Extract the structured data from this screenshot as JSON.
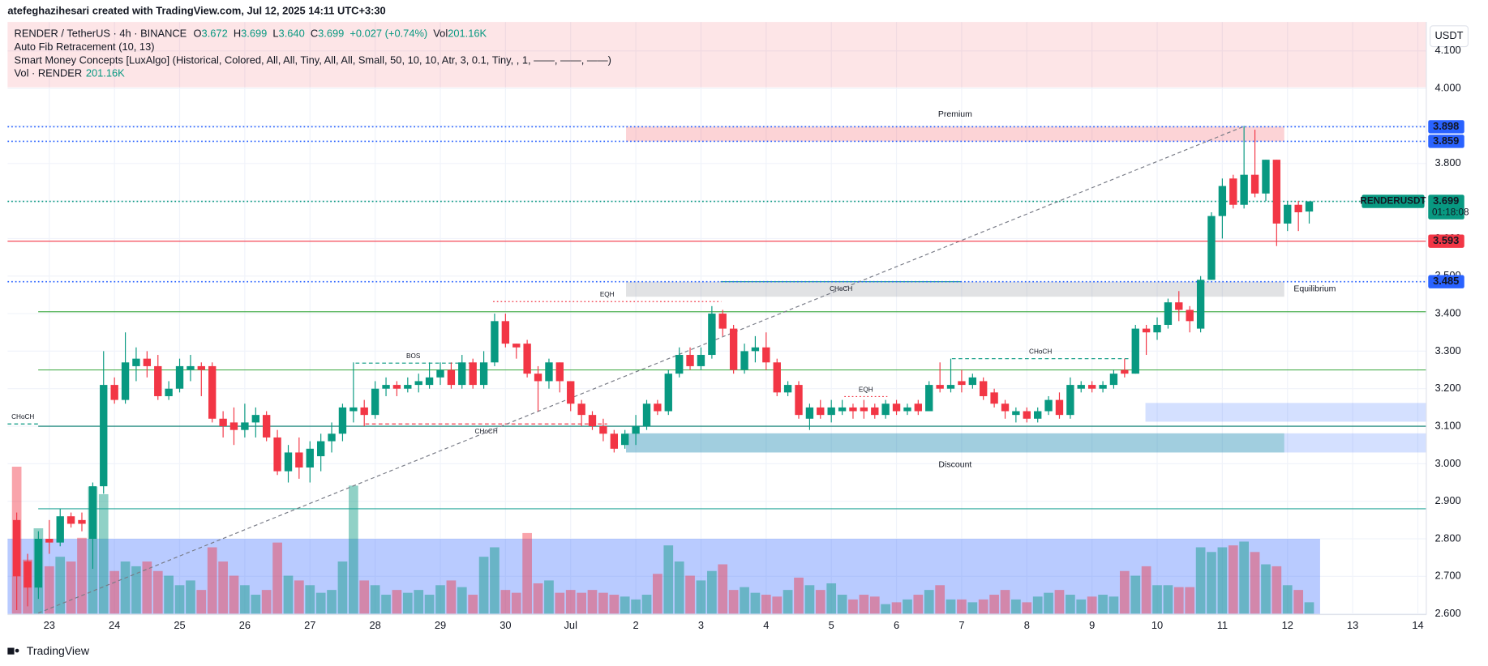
{
  "header": {
    "credit": "atefeghazihesari created with TradingView.com, Jul 12, 2025 14:11 UTC+3:30"
  },
  "legend": {
    "symbol": "RENDER / TetherUS · 4h · BINANCE",
    "ohlc": [
      {
        "key": "O",
        "value": "3.672"
      },
      {
        "key": "H",
        "value": "3.699"
      },
      {
        "key": "L",
        "value": "3.640"
      },
      {
        "key": "C",
        "value": "3.699"
      }
    ],
    "change": "+0.027 (+0.74%)",
    "vol_key": "Vol",
    "vol_value": "201.16K",
    "fib": "Auto Fib Retracement (10, 13)",
    "smc": "Smart Money Concepts [LuxAlgo] (Historical, Colored, All, All, Tiny, All, All, Small, 50, 10, 10, Atr, 3, 0.1, Tiny, , 1, ——, ——, ——)",
    "vol_name": "Vol · RENDER",
    "vol_name_value": "201.16K"
  },
  "axis_unit": "USDT",
  "footer": {
    "brand": "TradingView"
  },
  "chart_data": {
    "type": "candlestick",
    "up_color": "#089981",
    "down_color": "#f23645",
    "grid": true,
    "x": [
      22.5,
      22.667,
      22.833,
      23,
      23.167,
      23.333,
      23.5,
      23.667,
      23.833,
      24,
      24.167,
      24.333,
      24.5,
      24.667,
      24.833,
      25,
      25.167,
      25.333,
      25.5,
      25.667,
      25.833,
      26,
      26.167,
      26.333,
      26.5,
      26.667,
      26.833,
      27,
      27.167,
      27.333,
      27.5,
      27.667,
      27.833,
      28,
      28.167,
      28.333,
      28.5,
      28.667,
      28.833,
      29,
      29.167,
      29.333,
      29.5,
      29.667,
      29.833,
      30,
      30.167,
      30.333,
      30.5,
      30.667,
      30.833,
      31,
      31.167,
      31.333,
      31.5,
      31.667,
      31.833,
      32,
      32.167,
      32.333,
      32.5,
      32.667,
      32.833,
      33,
      33.167,
      33.333,
      33.5,
      33.667,
      33.833,
      34,
      34.167,
      34.333,
      34.5,
      34.667,
      34.833,
      35,
      35.167,
      35.333,
      35.5,
      35.667,
      35.833,
      36,
      36.167,
      36.333,
      36.5,
      36.667,
      36.833,
      37,
      37.167,
      37.333,
      37.5,
      37.667,
      37.833,
      38,
      38.167,
      38.333,
      38.5,
      38.667,
      38.833,
      39,
      39.167,
      39.333,
      39.5,
      39.667,
      39.833,
      40,
      40.167,
      40.333,
      40.5,
      40.667,
      40.833,
      41,
      41.167,
      41.333,
      41.5,
      41.667,
      41.833,
      42,
      42.167,
      42.333
    ],
    "open": [
      2.85,
      2.74,
      2.67,
      2.8,
      2.79,
      2.86,
      2.85,
      2.8,
      2.94,
      3.21,
      3.17,
      3.26,
      3.28,
      3.26,
      3.18,
      3.2,
      3.25,
      3.26,
      3.26,
      3.12,
      3.11,
      3.09,
      3.11,
      3.13,
      3.07,
      2.98,
      3.03,
      2.99,
      3.02,
      3.06,
      3.08,
      3.14,
      3.15,
      3.13,
      3.2,
      3.21,
      3.2,
      3.21,
      3.21,
      3.23,
      3.25,
      3.21,
      3.27,
      3.21,
      3.27,
      3.38,
      3.32,
      3.32,
      3.24,
      3.22,
      3.27,
      3.22,
      3.16,
      3.13,
      3.1,
      3.08,
      3.05,
      3.08,
      3.1,
      3.16,
      3.14,
      3.24,
      3.29,
      3.26,
      3.29,
      3.4,
      3.36,
      3.25,
      3.3,
      3.31,
      3.27,
      3.19,
      3.21,
      3.12,
      3.15,
      3.13,
      3.14,
      3.15,
      3.15,
      3.15,
      3.13,
      3.16,
      3.14,
      3.16,
      3.14,
      3.21,
      3.2,
      3.22,
      3.21,
      3.22,
      3.19,
      3.16,
      3.13,
      3.14,
      3.12,
      3.14,
      3.17,
      3.13,
      3.2,
      3.21,
      3.2,
      3.21,
      3.25,
      3.24,
      3.36,
      3.35,
      3.37,
      3.43,
      3.41,
      3.36,
      3.49,
      3.66,
      3.76,
      3.69,
      3.77,
      3.72,
      3.81,
      3.64,
      3.69,
      3.672
    ],
    "high": [
      2.87,
      2.76,
      2.82,
      2.85,
      2.88,
      2.87,
      2.87,
      2.95,
      3.3,
      3.23,
      3.35,
      3.31,
      3.3,
      3.29,
      3.22,
      3.28,
      3.29,
      3.27,
      3.27,
      3.14,
      3.15,
      3.16,
      3.15,
      3.14,
      3.09,
      3.05,
      3.07,
      3.06,
      3.08,
      3.11,
      3.16,
      3.27,
      3.17,
      3.22,
      3.23,
      3.22,
      3.23,
      3.24,
      3.27,
      3.27,
      3.27,
      3.29,
      3.28,
      3.3,
      3.4,
      3.4,
      3.32,
      3.33,
      3.26,
      3.28,
      3.27,
      3.22,
      3.17,
      3.14,
      3.12,
      3.09,
      3.09,
      3.13,
      3.17,
      3.17,
      3.25,
      3.31,
      3.31,
      3.31,
      3.42,
      3.41,
      3.37,
      3.32,
      3.34,
      3.35,
      3.28,
      3.22,
      3.22,
      3.16,
      3.17,
      3.17,
      3.17,
      3.16,
      3.17,
      3.16,
      3.17,
      3.17,
      3.16,
      3.17,
      3.22,
      3.27,
      3.28,
      3.25,
      3.24,
      3.23,
      3.2,
      3.17,
      3.15,
      3.15,
      3.15,
      3.18,
      3.19,
      3.23,
      3.22,
      3.22,
      3.22,
      3.25,
      3.28,
      3.37,
      3.37,
      3.39,
      3.44,
      3.46,
      3.42,
      3.5,
      3.67,
      3.76,
      3.77,
      3.9,
      3.89,
      3.81,
      3.81,
      3.7,
      3.7,
      3.699
    ],
    "low": [
      2.61,
      2.62,
      2.64,
      2.76,
      2.78,
      2.83,
      2.82,
      2.72,
      2.92,
      3.16,
      3.16,
      3.22,
      3.23,
      3.17,
      3.17,
      3.19,
      3.22,
      3.18,
      3.11,
      3.07,
      3.05,
      3.07,
      3.07,
      3.06,
      2.97,
      2.95,
      2.96,
      2.95,
      2.98,
      3.03,
      3.06,
      3.11,
      3.1,
      3.12,
      3.18,
      3.18,
      3.19,
      3.19,
      3.2,
      3.21,
      3.2,
      3.2,
      3.2,
      3.2,
      3.26,
      3.31,
      3.28,
      3.23,
      3.14,
      3.2,
      3.19,
      3.14,
      3.1,
      3.09,
      3.06,
      3.03,
      3.04,
      3.05,
      3.09,
      3.13,
      3.13,
      3.23,
      3.25,
      3.25,
      3.28,
      3.34,
      3.24,
      3.24,
      3.27,
      3.25,
      3.18,
      3.18,
      3.12,
      3.09,
      3.12,
      3.11,
      3.13,
      3.12,
      3.12,
      3.12,
      3.12,
      3.13,
      3.13,
      3.13,
      3.14,
      3.19,
      3.19,
      3.19,
      3.2,
      3.17,
      3.15,
      3.12,
      3.11,
      3.11,
      3.11,
      3.13,
      3.12,
      3.12,
      3.19,
      3.19,
      3.19,
      3.2,
      3.23,
      3.24,
      3.29,
      3.33,
      3.36,
      3.38,
      3.35,
      3.35,
      3.49,
      3.6,
      3.68,
      3.68,
      3.71,
      3.7,
      3.58,
      3.62,
      3.62,
      3.64
    ],
    "close": [
      2.7,
      2.67,
      2.8,
      2.79,
      2.86,
      2.84,
      2.84,
      2.94,
      3.21,
      3.17,
      3.27,
      3.28,
      3.26,
      3.18,
      3.2,
      3.26,
      3.26,
      3.25,
      3.12,
      3.1,
      3.09,
      3.11,
      3.13,
      3.07,
      2.98,
      3.03,
      2.99,
      3.04,
      3.06,
      3.08,
      3.15,
      3.15,
      3.13,
      3.2,
      3.21,
      3.2,
      3.21,
      3.22,
      3.23,
      3.25,
      3.21,
      3.27,
      3.21,
      3.27,
      3.38,
      3.32,
      3.31,
      3.24,
      3.22,
      3.27,
      3.22,
      3.16,
      3.13,
      3.1,
      3.08,
      3.04,
      3.08,
      3.1,
      3.16,
      3.14,
      3.24,
      3.29,
      3.26,
      3.29,
      3.4,
      3.36,
      3.25,
      3.3,
      3.31,
      3.27,
      3.19,
      3.21,
      3.13,
      3.15,
      3.13,
      3.15,
      3.15,
      3.14,
      3.14,
      3.13,
      3.16,
      3.14,
      3.15,
      3.14,
      3.21,
      3.2,
      3.21,
      3.21,
      3.23,
      3.18,
      3.16,
      3.14,
      3.14,
      3.12,
      3.14,
      3.17,
      3.13,
      3.21,
      3.21,
      3.2,
      3.21,
      3.24,
      3.24,
      3.36,
      3.35,
      3.37,
      3.43,
      3.41,
      3.38,
      3.49,
      3.66,
      3.74,
      3.69,
      3.77,
      3.72,
      3.81,
      3.64,
      3.69,
      3.67,
      3.699
    ],
    "volume": [
      2598000,
      955000,
      1509000,
      838000,
      1006000,
      922000,
      1341000,
      2246000,
      2112000,
      754000,
      922000,
      838000,
      922000,
      754000,
      671000,
      503000,
      587000,
      419000,
      1173000,
      922000,
      671000,
      503000,
      335000,
      419000,
      1257000,
      671000,
      587000,
      503000,
      369000,
      419000,
      922000,
      2263000,
      587000,
      503000,
      335000,
      419000,
      369000,
      419000,
      335000,
      503000,
      587000,
      469000,
      335000,
      1006000,
      1173000,
      419000,
      369000,
      1425000,
      536000,
      587000,
      369000,
      419000,
      369000,
      419000,
      369000,
      335000,
      302000,
      251000,
      335000,
      704000,
      1207000,
      922000,
      671000,
      587000,
      754000,
      872000,
      419000,
      469000,
      369000,
      335000,
      302000,
      419000,
      637000,
      503000,
      419000,
      536000,
      335000,
      251000,
      335000,
      302000,
      168000,
      201000,
      251000,
      335000,
      419000,
      503000,
      251000,
      251000,
      201000,
      251000,
      335000,
      419000,
      251000,
      201000,
      302000,
      369000,
      419000,
      335000,
      251000,
      302000,
      335000,
      302000,
      754000,
      671000,
      838000,
      503000,
      503000,
      469000,
      469000,
      1173000,
      1090000,
      1173000,
      1207000,
      1274000,
      1090000,
      872000,
      838000,
      503000,
      419000,
      201160
    ],
    "xlim": [
      22.36,
      44.13
    ],
    "xticks": [
      23,
      24,
      25,
      26,
      27,
      28,
      29,
      30,
      {
        "value": 31,
        "label": "Jul"
      },
      {
        "value": 32,
        "label": "2"
      },
      {
        "value": 33,
        "label": "3"
      },
      {
        "value": 34,
        "label": "4"
      },
      {
        "value": 35,
        "label": "5"
      },
      {
        "value": 36,
        "label": "6"
      },
      {
        "value": 37,
        "label": "7"
      },
      {
        "value": 38,
        "label": "8"
      },
      {
        "value": 39,
        "label": "9"
      },
      {
        "value": 40,
        "label": "10"
      },
      {
        "value": 41,
        "label": "11"
      },
      {
        "value": 42,
        "label": "12"
      },
      {
        "value": 43,
        "label": "13"
      },
      {
        "value": 44,
        "label": "14"
      }
    ],
    "ylim": [
      2.598,
      4.177
    ],
    "yticks": [
      {
        "value": 2.6,
        "label": "2.600"
      },
      {
        "value": 2.7,
        "label": "2.700"
      },
      {
        "value": 2.8,
        "label": "2.800"
      },
      {
        "value": 2.9,
        "label": "2.900"
      },
      {
        "value": 3.0,
        "label": "3.000"
      },
      {
        "value": 3.1,
        "label": "3.100"
      },
      {
        "value": 3.2,
        "label": "3.200"
      },
      {
        "value": 3.3,
        "label": "3.300"
      },
      {
        "value": 3.4,
        "label": "3.400"
      },
      {
        "value": 3.5,
        "label": "3.500"
      },
      {
        "value": 3.6,
        "label": "3.600"
      },
      {
        "value": 3.7,
        "label": "3.700"
      },
      {
        "value": 3.8,
        "label": "3.800"
      },
      {
        "value": 3.9,
        "label": "3.900"
      },
      {
        "value": 4.0,
        "label": "4.000"
      },
      {
        "value": 4.1,
        "label": "4.100"
      }
    ],
    "zones": [
      {
        "from": 22.36,
        "to": 44.13,
        "top": 4.177,
        "bottom": 4.003,
        "color": "rgba(242,54,69,0.13)"
      },
      {
        "from": 22.36,
        "to": 42.5,
        "top": 2.8,
        "bottom": 2.6,
        "color": "rgba(41,98,255,0.33)"
      },
      {
        "from": 31.85,
        "to": 41.95,
        "top": 3.898,
        "bottom": 3.859,
        "color": "rgba(242,54,69,0.22)",
        "label": "Premium",
        "label_position": "above",
        "label_color": "#f23645"
      },
      {
        "from": 31.85,
        "to": 41.95,
        "top": 3.485,
        "bottom": 3.445,
        "color": "rgba(120,123,134,0.22)",
        "label": "Equilibrium",
        "label_position": "right",
        "label_color": "#9598a1"
      },
      {
        "from": 39.82,
        "to": 44.13,
        "top": 3.162,
        "bottom": 3.112,
        "color": "rgba(41,98,255,0.2)"
      },
      {
        "from": 31.85,
        "to": 44.13,
        "top": 3.081,
        "bottom": 3.03,
        "color": "rgba(41,98,255,0.2)"
      },
      {
        "from": 31.85,
        "to": 41.95,
        "top": 3.081,
        "bottom": 3.03,
        "color": "rgba(8,153,129,0.25)",
        "label": "Discount",
        "label_position": "below",
        "label_color": "#089981"
      }
    ],
    "levels": [
      {
        "value": 3.405,
        "from": 22.83,
        "to": 44.13,
        "color": "#4caf50"
      },
      {
        "value": 3.25,
        "from": 22.83,
        "to": 44.13,
        "color": "#4caf50"
      },
      {
        "value": 3.1,
        "from": 22.83,
        "to": 44.13,
        "color": "#00796b"
      },
      {
        "value": 2.88,
        "from": 22.83,
        "to": 44.13,
        "color": "#26a69a"
      }
    ],
    "structures": [
      {
        "label": "CHoCH",
        "price": 3.106,
        "from": 22.36,
        "to": 22.83,
        "color": "#089981",
        "dash": "dashed",
        "label_side": "above"
      },
      {
        "label": "BOS",
        "price": 3.268,
        "from": 27.7,
        "to": 29.47,
        "color": "#089981",
        "dash": "dashed",
        "label_side": "above"
      },
      {
        "label": "CHoCH",
        "price": 3.106,
        "from": 27.85,
        "to": 31.56,
        "color": "#f23645",
        "dash": "dashed",
        "label_side": "below"
      },
      {
        "label": "EQH",
        "price": 3.432,
        "from": 29.81,
        "to": 33.31,
        "color": "#f23645",
        "dash": "dotted",
        "label_side": "above"
      },
      {
        "label": "CHoCH",
        "price": 3.485,
        "from": 33.3,
        "to": 37.0,
        "color": "#089981",
        "dash": "solid",
        "label_side": "below"
      },
      {
        "label": "EQH",
        "price": 3.179,
        "from": 35.2,
        "to": 35.86,
        "color": "#f23645",
        "dash": "dotted",
        "label_side": "above"
      },
      {
        "label": "CHoCH",
        "price": 3.28,
        "from": 36.85,
        "to": 39.57,
        "color": "#089981",
        "dash": "dashed",
        "label_side": "above"
      }
    ],
    "fib_line": {
      "from": [
        22.83,
        2.602
      ],
      "to": [
        41.32,
        3.898
      ]
    },
    "price_lines": [
      {
        "value": 3.898,
        "color": "#2962ff",
        "style": "dotted"
      },
      {
        "value": 3.859,
        "color": "#2962ff",
        "style": "dotted"
      },
      {
        "value": 3.699,
        "color": "#089981",
        "style": "dotted",
        "symbol_tag": "RENDERUSDT",
        "countdown": "01:18:08"
      },
      {
        "value": 3.593,
        "color": "#f23645",
        "style": "solid"
      },
      {
        "value": 3.485,
        "color": "#2962ff",
        "style": "dotted"
      }
    ]
  }
}
